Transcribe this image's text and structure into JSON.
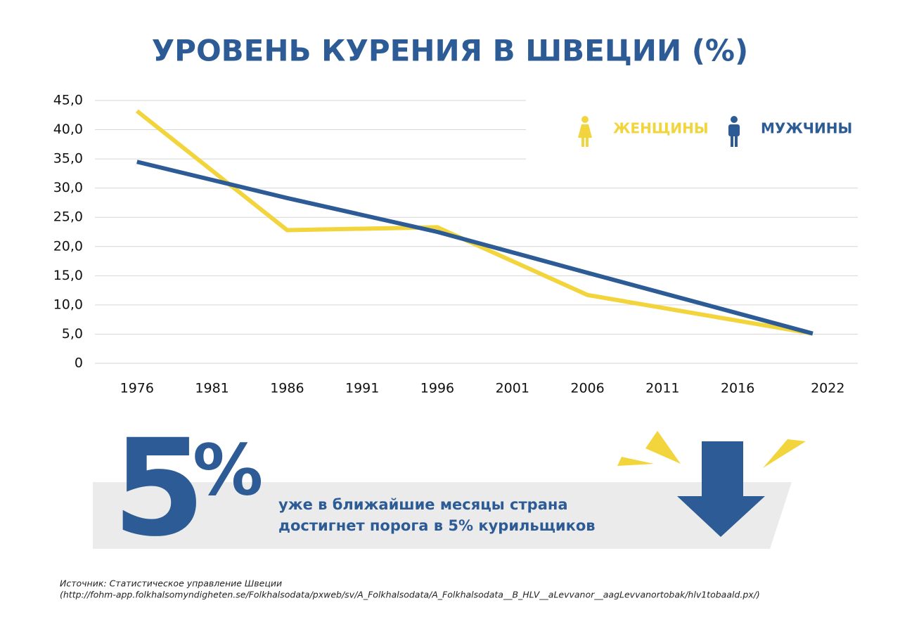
{
  "chart_data": {
    "type": "line",
    "title": "УРОВЕНЬ КУРЕНИЯ В ШВЕЦИИ (%)",
    "x": [
      1976,
      1986,
      1996,
      2006,
      2021
    ],
    "series": [
      {
        "name": "ЖЕНЩИНЫ",
        "color": "#f2d53c",
        "values": [
          43.2,
          22.8,
          23.3,
          11.7,
          5.1
        ]
      },
      {
        "name": "МУЖЧИНЫ",
        "color": "#2d5b96",
        "values": [
          34.5,
          28.3,
          22.5,
          15.5,
          5.1
        ]
      }
    ],
    "xlim": [
      1973.2,
      2024
    ],
    "xticks": [
      1976,
      1981,
      1986,
      1991,
      1996,
      2001,
      2006,
      2011,
      2016,
      2022
    ],
    "ylim": [
      0,
      45
    ],
    "yticks": [
      0,
      {
        "value": 5,
        "label": "5,0"
      },
      {
        "value": 10,
        "label": "10,0"
      },
      {
        "value": 15,
        "label": "15,0"
      },
      {
        "value": 20,
        "label": "20,0"
      },
      {
        "value": 25,
        "label": "25,0"
      },
      {
        "value": 30,
        "label": "30,0"
      },
      {
        "value": 35,
        "label": "35,0"
      },
      {
        "value": 40,
        "label": "40,0"
      },
      {
        "value": 45,
        "label": "45,0"
      }
    ],
    "grid": true,
    "legend": "top-right"
  },
  "callout": {
    "number": "5",
    "unit": "%",
    "lines": [
      "уже в ближайшие месяцы страна",
      "достигнет порога в 5% курильщиков"
    ]
  },
  "source": [
    "Источник: Статистическое управление Швеции",
    "(http://fohm-app.folkhalsomyndigheten.se/Folkhalsodata/pxweb/sv/A_Folkhalsodata/A_Folkhalsodata__B_HLV__aLevvanor__aagLevvanortobak/hlv1tobaald.px/)"
  ]
}
